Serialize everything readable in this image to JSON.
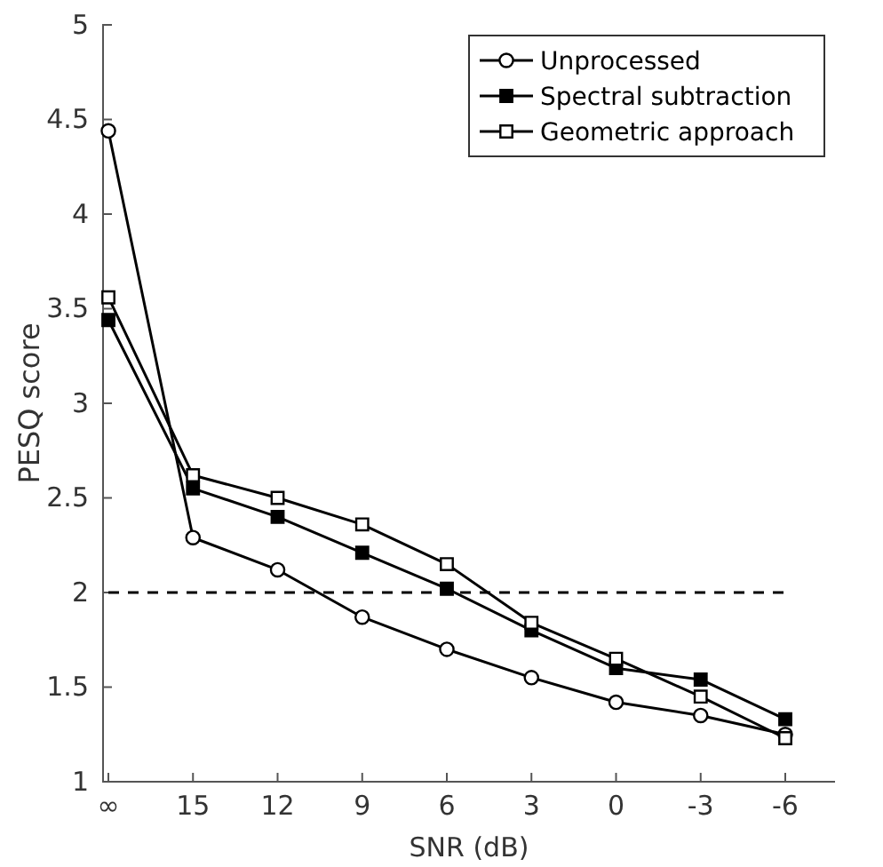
{
  "chart_data": {
    "type": "line",
    "xlabel": "SNR (dB)",
    "ylabel": "PESQ score",
    "categories": [
      "∞",
      "15",
      "12",
      "9",
      "6",
      "3",
      "0",
      "-3",
      "-6"
    ],
    "series": [
      {
        "name": "Unprocessed",
        "color": "#000000",
        "marker": "circle",
        "values": [
          4.44,
          2.29,
          2.12,
          1.87,
          1.7,
          1.55,
          1.42,
          1.35,
          1.25
        ]
      },
      {
        "name": "Spectral subtraction",
        "color": "#000000",
        "marker": "square",
        "values": [
          3.44,
          2.55,
          2.4,
          2.21,
          2.02,
          1.8,
          1.6,
          1.54,
          1.33
        ]
      },
      {
        "name": "Geometric approach",
        "color": "#000000",
        "marker": "square",
        "values": [
          3.56,
          2.62,
          2.5,
          2.36,
          2.15,
          1.84,
          1.65,
          1.45,
          1.23
        ]
      }
    ],
    "ylim": [
      1,
      5
    ],
    "yticks": [
      1,
      1.5,
      2,
      2.5,
      3,
      3.5,
      4,
      4.5,
      5
    ],
    "ref_lines": [
      {
        "axis": "y",
        "value": 2,
        "color": "#000000",
        "line_style": "dashed"
      }
    ],
    "legend": "top right",
    "grid": false,
    "line_style": "solid"
  }
}
